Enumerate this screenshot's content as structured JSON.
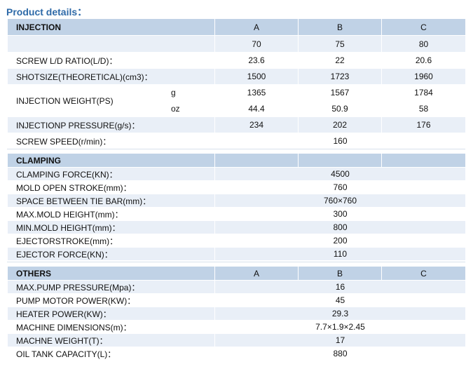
{
  "title": "Product details：",
  "injection": {
    "header": "INJECTION",
    "columns": [
      "A",
      "B",
      "C"
    ],
    "screw_diameter": [
      "70",
      "75",
      "80"
    ],
    "rows": [
      {
        "label": "SCREW L/D RATIO(L/D)：",
        "values": [
          "23.6",
          "22",
          "20.6"
        ]
      },
      {
        "label": "SHOTSIZE(THEORETICAL)(cm3)：",
        "values": [
          "1500",
          "1723",
          "1960"
        ]
      }
    ],
    "weight": {
      "label": "INJECTION WEIGHT(PS)",
      "g_unit": "g",
      "g_values": [
        "1365",
        "1567",
        "1784"
      ],
      "oz_unit": "oz",
      "oz_values": [
        "44.4",
        "50.9",
        "58"
      ]
    },
    "pressure": {
      "label": "INJECTIONP PRESSURE(g/s)：",
      "values": [
        "234",
        "202",
        "176"
      ]
    },
    "screw_speed": {
      "label": "SCREW SPEED(r/min)：",
      "value": "160"
    }
  },
  "clamping": {
    "header": "CLAMPING",
    "rows": [
      {
        "label": "CLAMPING FORCE(KN)：",
        "value": "4500"
      },
      {
        "label": "MOLD OPEN STROKE(mm)：",
        "value": "760"
      },
      {
        "label": "SPACE BETWEEN TIE BAR(mm)：",
        "value": "760×760"
      },
      {
        "label": "MAX.MOLD HEIGHT(mm)：",
        "value": "300"
      },
      {
        "label": "MIN.MOLD HEIGHT(mm)：",
        "value": "800"
      },
      {
        "label": "EJECTORSTROKE(mm)：",
        "value": "200"
      },
      {
        "label": "EJECTOR FORCE(KN)：",
        "value": "110"
      }
    ]
  },
  "others": {
    "header": "OTHERS",
    "columns": [
      "A",
      "B",
      "C"
    ],
    "rows": [
      {
        "label": "MAX.PUMP PRESSURE(Mpa)：",
        "value": "16"
      },
      {
        "label": "PUMP MOTOR POWER(KW)：",
        "value": "45"
      },
      {
        "label": "HEATER POWER(KW)：",
        "value": "29.3"
      },
      {
        "label": "MACHINE DIMENSIONS(m)：",
        "value": "7.7×1.9×2.45"
      },
      {
        "label": "MACHNE WEIGHT(T)：",
        "value": "17"
      },
      {
        "label": "OIL TANK CAPACITY(L)：",
        "value": "880"
      }
    ]
  }
}
